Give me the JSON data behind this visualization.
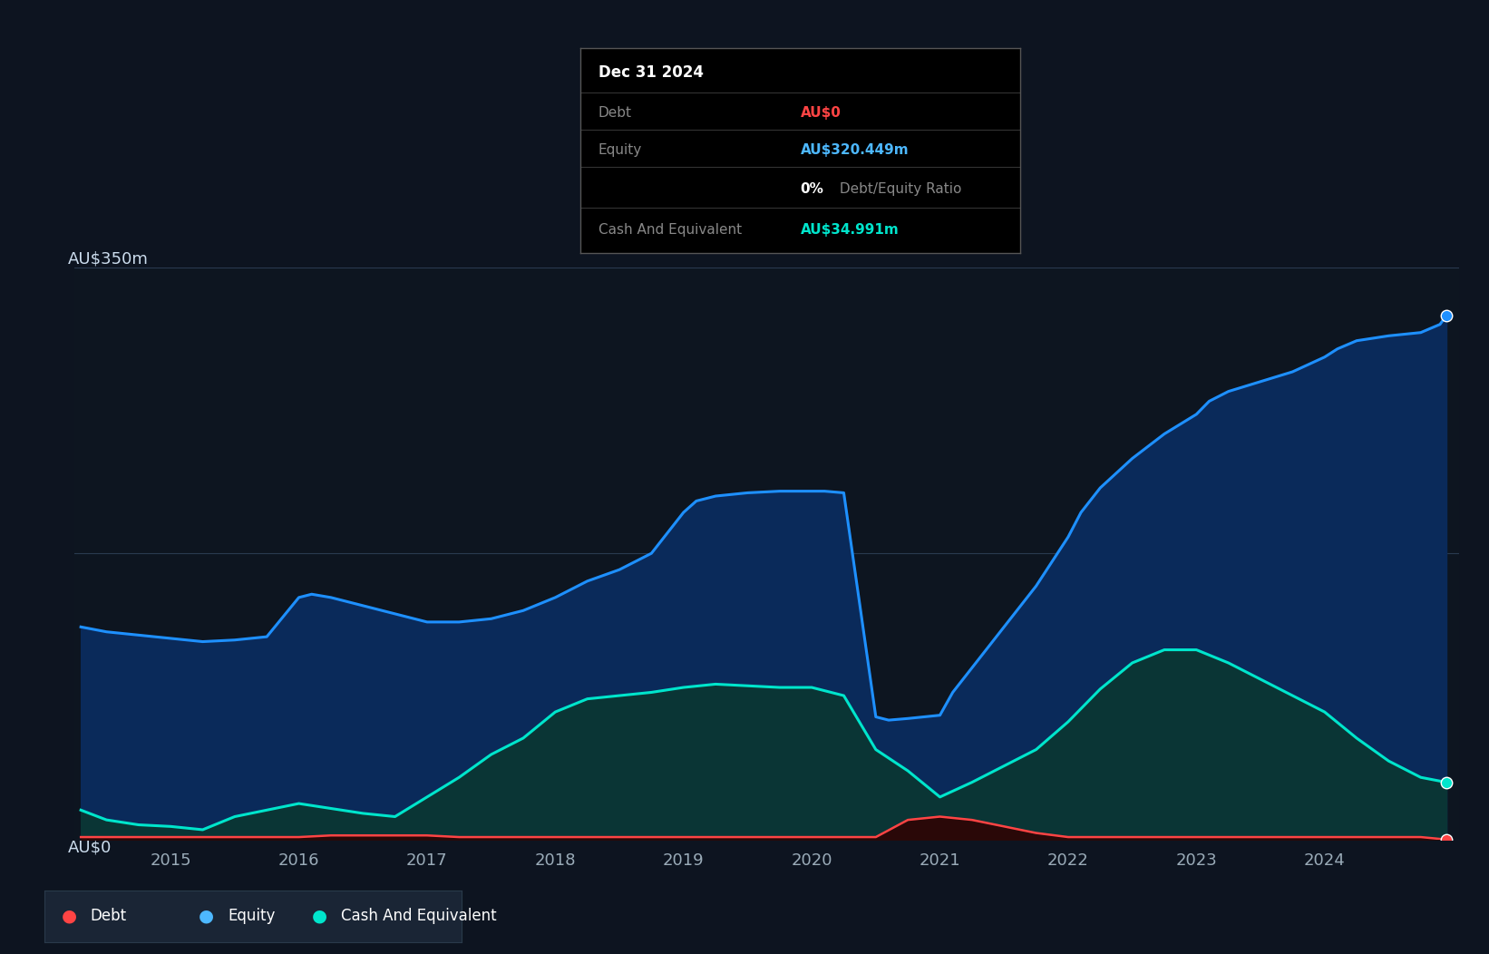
{
  "background_color": "#0d1420",
  "plot_bg_color": "#0d1520",
  "grid_color": "#2a3a50",
  "tooltip": {
    "date": "Dec 31 2024",
    "debt_label": "Debt",
    "debt_value": "AU$0",
    "equity_label": "Equity",
    "equity_value": "AU$320.449m",
    "ratio_text": "0% Debt/Equity Ratio",
    "cash_label": "Cash And Equivalent",
    "cash_value": "AU$34.991m",
    "title_color": "#ffffff",
    "label_color": "#888888",
    "debt_value_color": "#ff4444",
    "equity_value_color": "#4db8ff",
    "ratio_value_color": "#ffffff",
    "ratio_label_color": "#888888",
    "cash_value_color": "#00e5cc"
  },
  "ylabel_top": "AU$350m",
  "ylabel_bottom": "AU$0",
  "x_ticks": [
    2015,
    2016,
    2017,
    2018,
    2019,
    2020,
    2021,
    2022,
    2023,
    2024
  ],
  "equity_color": "#1e90ff",
  "equity_fill": "#0a2a5a",
  "cash_color": "#00e5cc",
  "cash_fill": "#0a3535",
  "debt_color": "#ff4444",
  "debt_fill": "#2a0808",
  "equity_data": [
    [
      2014.3,
      130
    ],
    [
      2014.5,
      127
    ],
    [
      2014.75,
      125
    ],
    [
      2015.0,
      123
    ],
    [
      2015.25,
      121
    ],
    [
      2015.5,
      122
    ],
    [
      2015.75,
      124
    ],
    [
      2016.0,
      148
    ],
    [
      2016.1,
      150
    ],
    [
      2016.25,
      148
    ],
    [
      2016.5,
      143
    ],
    [
      2016.75,
      138
    ],
    [
      2017.0,
      133
    ],
    [
      2017.25,
      133
    ],
    [
      2017.5,
      135
    ],
    [
      2017.75,
      140
    ],
    [
      2018.0,
      148
    ],
    [
      2018.25,
      158
    ],
    [
      2018.5,
      165
    ],
    [
      2018.75,
      175
    ],
    [
      2019.0,
      200
    ],
    [
      2019.1,
      207
    ],
    [
      2019.25,
      210
    ],
    [
      2019.5,
      212
    ],
    [
      2019.75,
      213
    ],
    [
      2020.0,
      213
    ],
    [
      2020.1,
      213
    ],
    [
      2020.25,
      212
    ],
    [
      2020.5,
      75
    ],
    [
      2020.6,
      73
    ],
    [
      2020.75,
      74
    ],
    [
      2021.0,
      76
    ],
    [
      2021.1,
      90
    ],
    [
      2021.25,
      105
    ],
    [
      2021.5,
      130
    ],
    [
      2021.75,
      155
    ],
    [
      2022.0,
      185
    ],
    [
      2022.1,
      200
    ],
    [
      2022.25,
      215
    ],
    [
      2022.5,
      233
    ],
    [
      2022.75,
      248
    ],
    [
      2023.0,
      260
    ],
    [
      2023.1,
      268
    ],
    [
      2023.25,
      274
    ],
    [
      2023.5,
      280
    ],
    [
      2023.75,
      286
    ],
    [
      2024.0,
      295
    ],
    [
      2024.1,
      300
    ],
    [
      2024.25,
      305
    ],
    [
      2024.5,
      308
    ],
    [
      2024.75,
      310
    ],
    [
      2024.9,
      315
    ],
    [
      2024.95,
      320.449
    ]
  ],
  "cash_data": [
    [
      2014.3,
      18
    ],
    [
      2014.5,
      12
    ],
    [
      2014.75,
      9
    ],
    [
      2015.0,
      8
    ],
    [
      2015.25,
      6
    ],
    [
      2015.5,
      14
    ],
    [
      2015.75,
      18
    ],
    [
      2016.0,
      22
    ],
    [
      2016.25,
      19
    ],
    [
      2016.5,
      16
    ],
    [
      2016.75,
      14
    ],
    [
      2017.0,
      26
    ],
    [
      2017.25,
      38
    ],
    [
      2017.5,
      52
    ],
    [
      2017.75,
      62
    ],
    [
      2018.0,
      78
    ],
    [
      2018.25,
      86
    ],
    [
      2018.5,
      88
    ],
    [
      2018.75,
      90
    ],
    [
      2019.0,
      93
    ],
    [
      2019.25,
      95
    ],
    [
      2019.5,
      94
    ],
    [
      2019.75,
      93
    ],
    [
      2020.0,
      93
    ],
    [
      2020.25,
      88
    ],
    [
      2020.5,
      55
    ],
    [
      2020.75,
      42
    ],
    [
      2021.0,
      26
    ],
    [
      2021.25,
      35
    ],
    [
      2021.5,
      45
    ],
    [
      2021.75,
      55
    ],
    [
      2022.0,
      72
    ],
    [
      2022.25,
      92
    ],
    [
      2022.5,
      108
    ],
    [
      2022.75,
      116
    ],
    [
      2023.0,
      116
    ],
    [
      2023.25,
      108
    ],
    [
      2023.5,
      98
    ],
    [
      2023.75,
      88
    ],
    [
      2024.0,
      78
    ],
    [
      2024.25,
      62
    ],
    [
      2024.5,
      48
    ],
    [
      2024.75,
      38
    ],
    [
      2024.95,
      34.991
    ]
  ],
  "debt_data": [
    [
      2014.3,
      1.5
    ],
    [
      2014.5,
      1.5
    ],
    [
      2014.75,
      1.5
    ],
    [
      2015.0,
      1.5
    ],
    [
      2015.25,
      1.5
    ],
    [
      2015.5,
      1.5
    ],
    [
      2015.75,
      1.5
    ],
    [
      2016.0,
      1.5
    ],
    [
      2016.25,
      2.5
    ],
    [
      2016.5,
      2.5
    ],
    [
      2016.75,
      2.5
    ],
    [
      2017.0,
      2.5
    ],
    [
      2017.25,
      1.5
    ],
    [
      2017.5,
      1.5
    ],
    [
      2017.75,
      1.5
    ],
    [
      2018.0,
      1.5
    ],
    [
      2018.25,
      1.5
    ],
    [
      2018.5,
      1.5
    ],
    [
      2018.75,
      1.5
    ],
    [
      2019.0,
      1.5
    ],
    [
      2019.25,
      1.5
    ],
    [
      2019.5,
      1.5
    ],
    [
      2019.75,
      1.5
    ],
    [
      2020.0,
      1.5
    ],
    [
      2020.25,
      1.5
    ],
    [
      2020.5,
      1.5
    ],
    [
      2020.75,
      12
    ],
    [
      2021.0,
      14
    ],
    [
      2021.25,
      12
    ],
    [
      2021.5,
      8
    ],
    [
      2021.75,
      4
    ],
    [
      2022.0,
      1.5
    ],
    [
      2022.25,
      1.5
    ],
    [
      2022.5,
      1.5
    ],
    [
      2022.75,
      1.5
    ],
    [
      2023.0,
      1.5
    ],
    [
      2023.25,
      1.5
    ],
    [
      2023.5,
      1.5
    ],
    [
      2023.75,
      1.5
    ],
    [
      2024.0,
      1.5
    ],
    [
      2024.25,
      1.5
    ],
    [
      2024.5,
      1.5
    ],
    [
      2024.75,
      1.5
    ],
    [
      2024.95,
      0
    ]
  ],
  "legend": [
    {
      "label": "Debt",
      "color": "#ff4444"
    },
    {
      "label": "Equity",
      "color": "#4db8ff"
    },
    {
      "label": "Cash And Equivalent",
      "color": "#00e5cc"
    }
  ],
  "ylim": [
    0,
    350
  ],
  "xlim": [
    2014.25,
    2025.05
  ]
}
